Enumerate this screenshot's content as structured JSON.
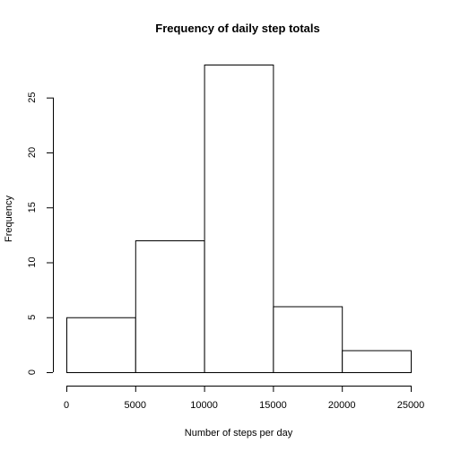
{
  "chart_data": {
    "type": "bar",
    "title": "Frequency of daily step totals",
    "xlabel": "Number of steps per day",
    "ylabel": "Frequency",
    "bins": [
      {
        "start": 0,
        "end": 5000,
        "count": 5
      },
      {
        "start": 5000,
        "end": 10000,
        "count": 12
      },
      {
        "start": 10000,
        "end": 15000,
        "count": 28
      },
      {
        "start": 15000,
        "end": 20000,
        "count": 6
      },
      {
        "start": 20000,
        "end": 25000,
        "count": 2
      }
    ],
    "xlim": [
      0,
      25000
    ],
    "ylim": [
      0,
      28
    ],
    "x_ticks": [
      0,
      5000,
      10000,
      15000,
      20000,
      25000
    ],
    "y_ticks": [
      0,
      5,
      10,
      15,
      20,
      25
    ],
    "grid": false,
    "legend": "none"
  }
}
